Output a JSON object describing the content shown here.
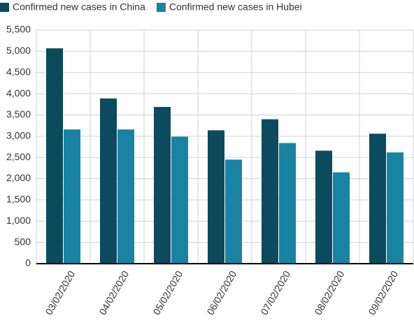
{
  "chart_data": {
    "type": "bar",
    "categories": [
      "03/02/2020",
      "04/02/2020",
      "05/02/2020",
      "06/02/2020",
      "07/02/2020",
      "08/02/2020",
      "09/02/2020"
    ],
    "series": [
      {
        "name": "Confirmed new cases in China",
        "color": "#0c4a5e",
        "values": [
          5070,
          3890,
          3690,
          3140,
          3400,
          2660,
          3060
        ]
      },
      {
        "name": "Confirmed new cases in Hubei",
        "color": "#1883a3",
        "values": [
          3160,
          3160,
          2990,
          2450,
          2840,
          2150,
          2620
        ]
      }
    ],
    "ylim": [
      0,
      5500
    ],
    "yticks": [
      0,
      500,
      {
        "value": 1000,
        "label": "1,000"
      },
      {
        "value": 1500,
        "label": "1,500"
      },
      {
        "value": 2000,
        "label": "2,000"
      },
      {
        "value": 2500,
        "label": "2,500"
      },
      {
        "value": 3000,
        "label": "3,000"
      },
      {
        "value": 3500,
        "label": "3,500"
      },
      {
        "value": 4000,
        "label": "4,000"
      },
      {
        "value": 4500,
        "label": "4,500"
      },
      {
        "value": 5000,
        "label": "5,000"
      },
      {
        "value": 5500,
        "label": "5,500"
      }
    ],
    "grid": true
  }
}
